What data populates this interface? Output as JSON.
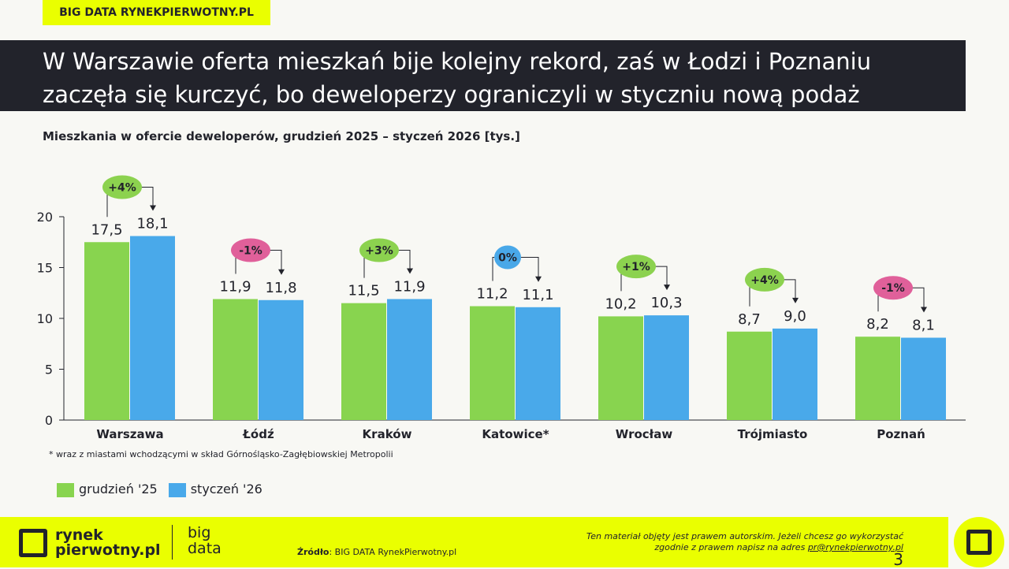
{
  "tag": "BIG DATA RYNEKPIERWOTNY.PL",
  "title_line1": "W Warszawie oferta mieszkań bije kolejny rekord, zaś w Łodzi i Poznaniu",
  "title_line2": "zaczęła się kurczyć, bo deweloperzy ograniczyli w styczniu nową podaż",
  "note": "* wraz z miastami wchodzącymi w skład Górnośląsko-Zagłębiowskiej Metropolii",
  "chart_data": {
    "type": "bar",
    "title": "Mieszkania w ofercie deweloperów, grudzień 2025 – styczeń 2026 [tys.]",
    "categories": [
      "Warszawa",
      "Łódź",
      "Kraków",
      "Katowice*",
      "Wrocław",
      "Trójmiasto",
      "Poznań"
    ],
    "series": [
      {
        "name": "grudzień '25",
        "color": "#88d44f",
        "values": [
          17.5,
          11.9,
          11.5,
          11.2,
          10.2,
          8.7,
          8.2
        ],
        "labels": [
          "17,5",
          "11,9",
          "11,5",
          "11,2",
          "10,2",
          "8,7",
          "8,2"
        ]
      },
      {
        "name": "styczeń '26",
        "color": "#49a9ea",
        "values": [
          18.1,
          11.8,
          11.9,
          11.1,
          10.3,
          9.0,
          8.1
        ],
        "labels": [
          "18,1",
          "11,8",
          "11,9",
          "11,1",
          "10,3",
          "9,0",
          "8,1"
        ]
      }
    ],
    "changes": [
      "+4%",
      "-1%",
      "+3%",
      "0%",
      "+1%",
      "+4%",
      "-1%"
    ],
    "change_colors": {
      "up": "#8cd24f",
      "down": "#e0609a",
      "flat": "#49a8e8"
    },
    "yticks": [
      0,
      5,
      10,
      15,
      20
    ],
    "ylim": [
      0,
      20
    ],
    "grid": false,
    "legend": "bottom-left"
  },
  "footer": {
    "logo_line1": "rynek",
    "logo_line2": "pierwotny.pl",
    "big": "big",
    "data": "data",
    "source_label": "Źródło",
    "source": ": BIG DATA RynekPierwotny.pl",
    "rights1": "Ten materiał objęty jest prawem autorskim. Jeżeli chcesz go wykorzystać",
    "rights2": "zgodnie z prawem napisz na adres ",
    "email": "pr@rynekpierwotny.pl",
    "page": "3"
  }
}
